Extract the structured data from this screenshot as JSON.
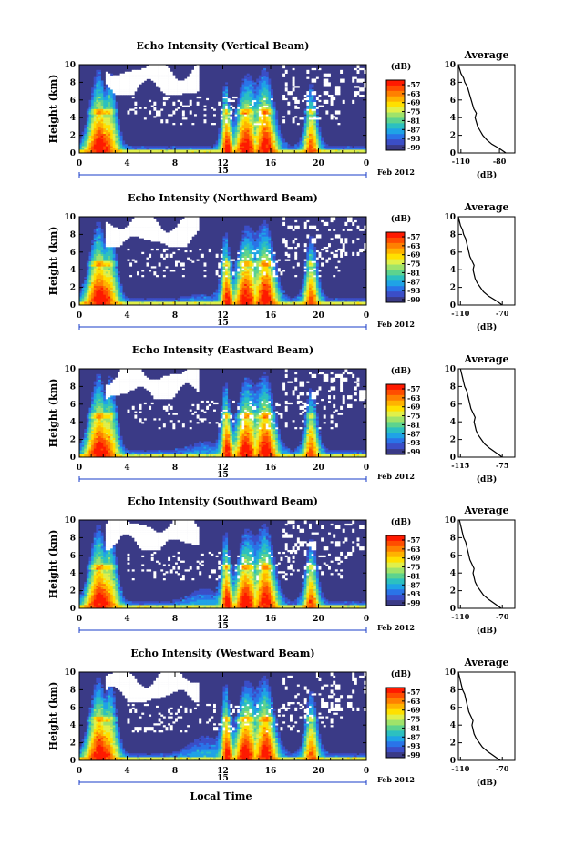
{
  "x_axis": {
    "label": "Local Time",
    "ticks": [
      "0",
      "4",
      "8",
      "12",
      "16",
      "20",
      "0"
    ],
    "day_label": "15",
    "date_label": "Feb 2012"
  },
  "colorbar": {
    "unit": "(dB)",
    "ticks": [
      "-57",
      "-63",
      "-69",
      "-75",
      "-81",
      "-87",
      "-93",
      "-99"
    ],
    "colors": [
      "#ff1a00",
      "#ff4d00",
      "#ff8000",
      "#ffb300",
      "#ffe000",
      "#e0f04a",
      "#9fe36a",
      "#5dd38e",
      "#2cc0c0",
      "#1fa3e6",
      "#2a74e8",
      "#3b4ec7",
      "#3a3a86"
    ]
  },
  "y_axis": {
    "label": "Height (km)",
    "ticks": [
      "0",
      "2",
      "4",
      "6",
      "8",
      "10"
    ]
  },
  "avg_label": "(dB)",
  "chart_data": [
    {
      "type": "heatmap",
      "title": "Echo Intensity (Vertical Beam)",
      "xlabel": "",
      "ylabel": "Height (km)",
      "xlim": [
        0,
        24
      ],
      "ylim": [
        0,
        10
      ],
      "colorbar_range_db": [
        -99,
        -57
      ],
      "side_panel": {
        "type": "line",
        "title": "Average",
        "xlabel": "(dB)",
        "xticks": [
          "-110",
          "-80"
        ],
        "heights_km": [
          0,
          0.5,
          1,
          1.5,
          2,
          2.5,
          3,
          3.5,
          4,
          4.5,
          5,
          5.5,
          6,
          6.5,
          7,
          7.5,
          8,
          8.5,
          9,
          9.5,
          10
        ],
        "values_db": [
          -75,
          -80,
          -86,
          -90,
          -93,
          -95,
          -97,
          -98,
          -99,
          -98,
          -100,
          -101,
          -102,
          -103,
          -104,
          -105,
          -107,
          -108,
          -110,
          -111,
          -112
        ]
      }
    },
    {
      "type": "heatmap",
      "title": "Echo Intensity (Northward Beam)",
      "xlabel": "",
      "ylabel": "Height (km)",
      "xlim": [
        0,
        24
      ],
      "ylim": [
        0,
        10
      ],
      "colorbar_range_db": [
        -99,
        -57
      ],
      "side_panel": {
        "type": "line",
        "title": "Average",
        "xlabel": "(dB)",
        "xticks": [
          "-110",
          "-70"
        ],
        "heights_km": [
          0,
          0.5,
          1,
          1.5,
          2,
          2.5,
          3,
          3.5,
          4,
          4.5,
          5,
          5.5,
          6,
          6.5,
          7,
          7.5,
          8,
          8.5,
          9,
          9.5,
          10
        ],
        "values_db": [
          -70,
          -76,
          -83,
          -88,
          -91,
          -94,
          -96,
          -97,
          -98,
          -97,
          -99,
          -101,
          -102,
          -103,
          -104,
          -105,
          -107,
          -108,
          -110,
          -111,
          -112
        ]
      }
    },
    {
      "type": "heatmap",
      "title": "Echo Intensity (Eastward Beam)",
      "xlabel": "",
      "ylabel": "Height (km)",
      "xlim": [
        0,
        24
      ],
      "ylim": [
        0,
        10
      ],
      "colorbar_range_db": [
        -99,
        -57
      ],
      "side_panel": {
        "type": "line",
        "title": "Average",
        "xlabel": "(dB)",
        "xticks": [
          "-115",
          "-75"
        ],
        "heights_km": [
          0,
          0.5,
          1,
          1.5,
          2,
          2.5,
          3,
          3.5,
          4,
          4.5,
          5,
          5.5,
          6,
          6.5,
          7,
          7.5,
          8,
          8.5,
          9,
          9.5,
          10
        ],
        "values_db": [
          -75,
          -81,
          -87,
          -92,
          -95,
          -98,
          -100,
          -101,
          -102,
          -101,
          -103,
          -105,
          -106,
          -107,
          -108,
          -109,
          -111,
          -112,
          -113,
          -114,
          -115
        ]
      }
    },
    {
      "type": "heatmap",
      "title": "Echo Intensity (Southward Beam)",
      "xlabel": "",
      "ylabel": "Height (km)",
      "xlim": [
        0,
        24
      ],
      "ylim": [
        0,
        10
      ],
      "colorbar_range_db": [
        -99,
        -57
      ],
      "side_panel": {
        "type": "line",
        "title": "Average",
        "xlabel": "(dB)",
        "xticks": [
          "-110",
          "-70"
        ],
        "heights_km": [
          0,
          0.5,
          1,
          1.5,
          2,
          2.5,
          3,
          3.5,
          4,
          4.5,
          5,
          5.5,
          6,
          6.5,
          7,
          7.5,
          8,
          8.5,
          9,
          9.5,
          10
        ],
        "values_db": [
          -71,
          -77,
          -83,
          -88,
          -91,
          -94,
          -96,
          -97,
          -98,
          -97,
          -99,
          -101,
          -102,
          -103,
          -104,
          -105,
          -107,
          -108,
          -109,
          -110,
          -111
        ]
      }
    },
    {
      "type": "heatmap",
      "title": "Echo Intensity (Westward Beam)",
      "xlabel": "Local Time",
      "ylabel": "Height (km)",
      "xlim": [
        0,
        24
      ],
      "ylim": [
        0,
        10
      ],
      "colorbar_range_db": [
        -99,
        -57
      ],
      "side_panel": {
        "type": "line",
        "title": "Average",
        "xlabel": "(dB)",
        "xticks": [
          "-110",
          "-70"
        ],
        "heights_km": [
          0,
          0.5,
          1,
          1.5,
          2,
          2.5,
          3,
          3.5,
          4,
          4.5,
          5,
          5.5,
          6,
          6.5,
          7,
          7.5,
          8,
          8.5,
          9,
          9.5,
          10
        ],
        "values_db": [
          -72,
          -78,
          -84,
          -89,
          -92,
          -95,
          -97,
          -98,
          -99,
          -98,
          -100,
          -102,
          -103,
          -104,
          -105,
          -106,
          -108,
          -109,
          -110,
          -111,
          -112
        ]
      }
    }
  ]
}
